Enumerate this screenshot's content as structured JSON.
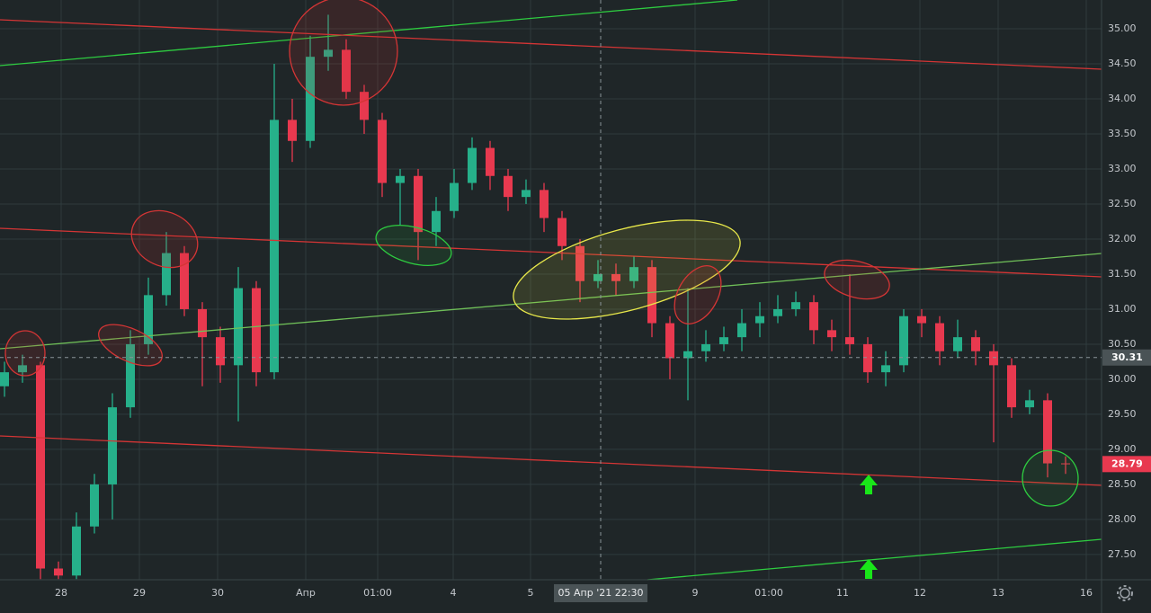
{
  "chart_data": {
    "type": "candlestick",
    "open": [
      29.9,
      30.1,
      30.2,
      27.3,
      27.2,
      27.9,
      28.5,
      29.6,
      30.5,
      31.2,
      31.8,
      31.0,
      30.6,
      30.2,
      31.3,
      30.1,
      33.7,
      33.4,
      34.6,
      34.7,
      34.1,
      33.7,
      32.8,
      32.9,
      32.1,
      32.4,
      32.8,
      33.3,
      32.9,
      32.6,
      32.7,
      32.3,
      31.9,
      31.4,
      31.5,
      31.4,
      31.6,
      30.8,
      30.3,
      30.4,
      30.5,
      30.6,
      30.8,
      30.9,
      31.0,
      31.1,
      30.7,
      30.6,
      30.5,
      30.1,
      30.2,
      30.9,
      30.8,
      30.4,
      30.6,
      30.4,
      30.2,
      29.6,
      29.7,
      28.8
    ],
    "high": [
      30.25,
      30.35,
      30.25,
      27.4,
      28.1,
      28.65,
      29.8,
      30.7,
      31.45,
      32.1,
      31.9,
      31.1,
      30.75,
      31.6,
      31.4,
      34.5,
      34.0,
      34.9,
      35.2,
      34.85,
      34.2,
      33.8,
      33.0,
      33.0,
      32.6,
      33.0,
      33.45,
      33.4,
      33.0,
      32.85,
      32.8,
      32.4,
      32.0,
      31.7,
      31.65,
      31.75,
      31.7,
      30.9,
      31.3,
      30.7,
      30.75,
      31.0,
      31.1,
      31.2,
      31.25,
      31.2,
      30.85,
      31.5,
      30.6,
      30.4,
      31.0,
      31.0,
      30.9,
      30.85,
      30.7,
      30.5,
      30.3,
      29.85,
      29.8,
      28.9
    ],
    "low": [
      29.75,
      29.95,
      27.15,
      27.15,
      27.15,
      27.8,
      28.0,
      29.45,
      30.35,
      31.05,
      30.9,
      29.9,
      29.95,
      29.4,
      29.9,
      30.0,
      33.1,
      33.3,
      34.4,
      34.0,
      33.5,
      32.6,
      32.2,
      31.7,
      31.9,
      32.3,
      32.7,
      32.7,
      32.4,
      32.5,
      32.1,
      31.7,
      31.1,
      31.3,
      31.2,
      31.3,
      30.6,
      30.0,
      29.7,
      30.25,
      30.4,
      30.4,
      30.6,
      30.8,
      30.9,
      30.5,
      30.4,
      30.35,
      29.95,
      29.9,
      30.1,
      30.6,
      30.2,
      30.3,
      30.2,
      29.1,
      29.45,
      29.5,
      28.6,
      28.65
    ],
    "close": [
      30.1,
      30.2,
      27.3,
      27.2,
      27.9,
      28.5,
      29.6,
      30.5,
      31.2,
      31.8,
      31.0,
      30.6,
      30.2,
      31.3,
      30.1,
      33.7,
      33.4,
      34.6,
      34.7,
      34.1,
      33.7,
      32.8,
      32.9,
      32.1,
      32.4,
      32.8,
      33.3,
      32.9,
      32.6,
      32.7,
      32.3,
      31.9,
      31.4,
      31.5,
      31.4,
      31.6,
      30.8,
      30.3,
      30.4,
      30.5,
      30.6,
      30.8,
      30.9,
      31.0,
      31.1,
      30.7,
      30.6,
      30.5,
      30.1,
      30.2,
      30.9,
      30.8,
      30.4,
      30.6,
      30.4,
      30.2,
      29.6,
      29.7,
      28.8,
      28.79
    ],
    "up_color": "#26b08a",
    "down_color": "#e8394f",
    "xlim": [
      -0.25,
      61
    ],
    "xticks": [
      {
        "value": 3.15,
        "label": "28"
      },
      {
        "value": 7.5,
        "label": "29"
      },
      {
        "value": 11.85,
        "label": "30"
      },
      {
        "value": 16.75,
        "label": "Апр"
      },
      {
        "value": 20.75,
        "label": "01:00"
      },
      {
        "value": 24.95,
        "label": "4"
      },
      {
        "value": 29.25,
        "label": "5"
      },
      {
        "value": 38.4,
        "label": "9"
      },
      {
        "value": 42.5,
        "label": "01:00"
      },
      {
        "value": 46.6,
        "label": "11"
      },
      {
        "value": 50.9,
        "label": "12"
      },
      {
        "value": 55.25,
        "label": "13"
      },
      {
        "value": 60.15,
        "label": "16"
      }
    ],
    "ylim": [
      27.14,
      35.41
    ],
    "yticks": [
      {
        "value": 27.5,
        "label": "27.50"
      },
      {
        "value": 28,
        "label": "28.00"
      },
      {
        "value": 28.5,
        "label": "28.50"
      },
      {
        "value": 29,
        "label": "29.00"
      },
      {
        "value": 29.5,
        "label": "29.50"
      },
      {
        "value": 30,
        "label": "30.00"
      },
      {
        "value": 30.5,
        "label": "30.50"
      },
      {
        "value": 31,
        "label": "31.00"
      },
      {
        "value": 31.5,
        "label": "31.50"
      },
      {
        "value": 32,
        "label": "32.00"
      },
      {
        "value": 32.5,
        "label": "32.50"
      },
      {
        "value": 33,
        "label": "33.00"
      },
      {
        "value": 33.5,
        "label": "33.50"
      },
      {
        "value": 34,
        "label": "34.00"
      },
      {
        "value": 34.5,
        "label": "34.50"
      },
      {
        "value": 35,
        "label": "35.00"
      }
    ],
    "grid": true,
    "crosshair": {
      "x": 33.15,
      "x_label": "05 Апр '21  22:30",
      "y": 30.31
    },
    "last_price": 28.79
  }
}
